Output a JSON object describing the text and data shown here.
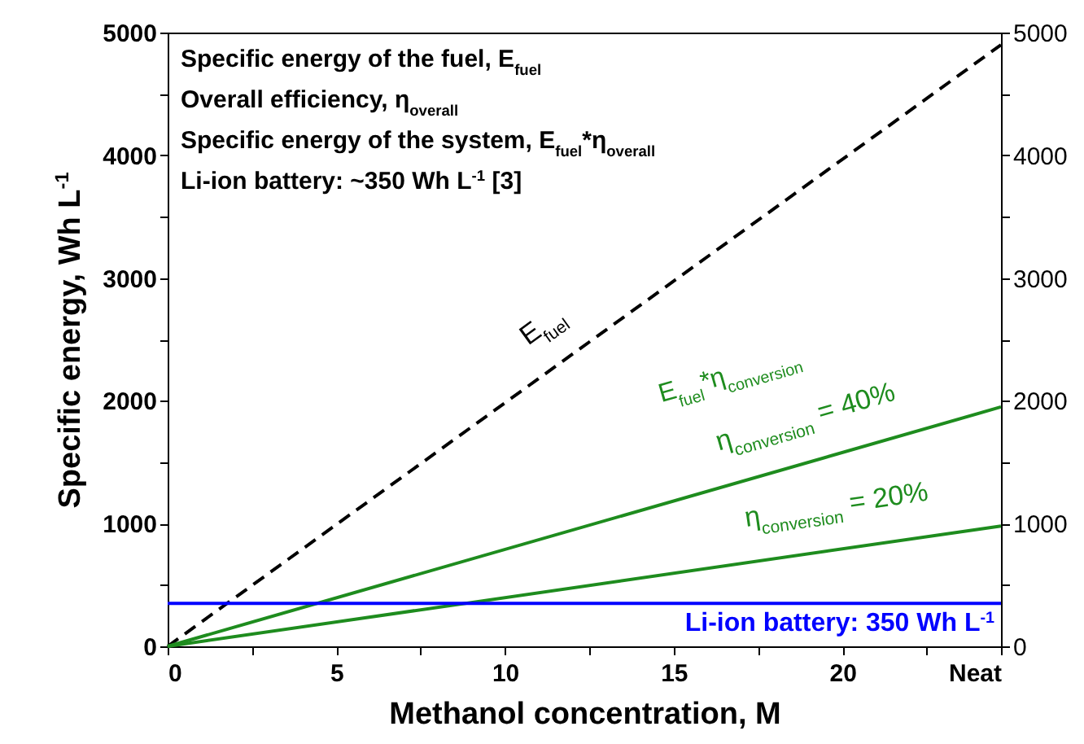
{
  "chart_data": {
    "type": "line",
    "xlabel": "Methanol concentration, M",
    "ylabel": "Specific energy, Wh L$^{-1}$",
    "xlim": [
      0,
      24.7
    ],
    "xticks": [
      0,
      {
        "value": 2.5,
        "label": null
      },
      5,
      {
        "value": 7.5,
        "label": null
      },
      10,
      {
        "value": 12.5,
        "label": null
      },
      15,
      {
        "value": 17.5,
        "label": null
      },
      20,
      {
        "value": 22.5,
        "label": null
      },
      {
        "value": 24.7,
        "label": "Neat"
      }
    ],
    "ylim": [
      0,
      5000
    ],
    "yticks": [
      0,
      {
        "value": 500,
        "label": null
      },
      1000,
      {
        "value": 1500,
        "label": null
      },
      2000,
      {
        "value": 2500,
        "label": null
      },
      3000,
      {
        "value": 3500,
        "label": null
      },
      4000,
      {
        "value": 4500,
        "label": null
      },
      5000
    ],
    "y2lim": [
      0,
      5000
    ],
    "y2ticks": [
      0,
      {
        "value": 500,
        "label": null
      },
      1000,
      {
        "value": 1500,
        "label": null
      },
      2000,
      {
        "value": 2500,
        "label": null
      },
      3000,
      {
        "value": 3500,
        "label": null
      },
      4000,
      {
        "value": 4500,
        "label": null
      },
      5000
    ],
    "x": [
      0,
      24.7
    ],
    "series": [
      {
        "name": "E$_{fuel}$",
        "color": "#000000",
        "line_style": "dashed",
        "values": [
          0,
          4900
        ]
      },
      {
        "name": "η$_{conversion}$ = 40%",
        "color": "#1e8c1e",
        "line_style": "solid",
        "values": [
          0,
          1950
        ]
      },
      {
        "name": "η$_{conversion}$ = 20%",
        "color": "#1e8c1e",
        "line_style": "solid",
        "values": [
          0,
          980
        ]
      }
    ],
    "ref_lines": [
      {
        "axis": "y",
        "value": 350,
        "label": "Li-ion battery: 350 Wh L$^{-1}$",
        "color": "#0000ff"
      }
    ],
    "annotations": [
      "Specific energy of the fuel, E$_{fuel}$",
      "Overall efficiency, η$_{overall}$",
      "Specific energy of the system, E$_{fuel}$*η$_{overall}$",
      "Li-ion battery: ~350 Wh L$^{-1}$ [3]",
      "E$_{fuel}$*η$_{conversion}$"
    ],
    "grid": false,
    "marker": "none"
  }
}
